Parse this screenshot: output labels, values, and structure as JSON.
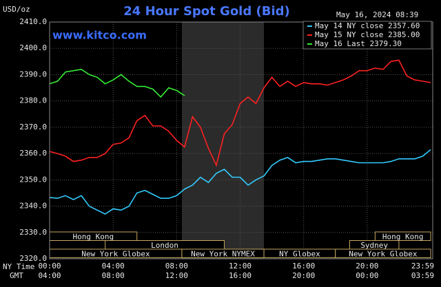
{
  "chart_data": {
    "type": "line",
    "title": "24 Hour Spot Gold (Bid)",
    "unit_label": "USD/oz",
    "timestamp": "May 16, 2024 08:39",
    "watermark": "www.kitco.com",
    "x_row_label": "NY Time",
    "x2_row_label": "GMT",
    "xlim": [
      0,
      24
    ],
    "ylim": [
      2320,
      2410
    ],
    "grid": true,
    "legend": "top-right",
    "yticks": [
      {
        "value": 2320,
        "label": "2320.0"
      },
      {
        "value": 2330,
        "label": "2330.0"
      },
      {
        "value": 2340,
        "label": "2340.0"
      },
      {
        "value": 2350,
        "label": "2350.0"
      },
      {
        "value": 2360,
        "label": "2360.0"
      },
      {
        "value": 2370,
        "label": "2370.0"
      },
      {
        "value": 2380,
        "label": "2380.0"
      },
      {
        "value": 2390,
        "label": "2390.0"
      },
      {
        "value": 2400,
        "label": "2400.0"
      },
      {
        "value": 2410,
        "label": "2410.0"
      }
    ],
    "xticks": [
      {
        "value": 0,
        "label": "00:00"
      },
      {
        "value": 4,
        "label": "04:00"
      },
      {
        "value": 8,
        "label": "08:00"
      },
      {
        "value": 12,
        "label": "12:00"
      },
      {
        "value": 16,
        "label": "16:00"
      },
      {
        "value": 20,
        "label": "20:00"
      },
      {
        "value": 23.98,
        "label": "23:59"
      }
    ],
    "x2ticks": [
      {
        "value": 0,
        "label": "04:00"
      },
      {
        "value": 4,
        "label": "08:00"
      },
      {
        "value": 8,
        "label": "12:00"
      },
      {
        "value": 12,
        "label": "16:00"
      },
      {
        "value": 16,
        "label": "20:00"
      },
      {
        "value": 20,
        "label": "00:00"
      },
      {
        "value": 23.98,
        "label": "03:59"
      }
    ],
    "shade": {
      "start": 8.33,
      "end": 13.5,
      "color": "#2b2b2b"
    },
    "sessions": [
      {
        "label": "Hong Kong",
        "start": 0,
        "end": 5.5,
        "row": 0
      },
      {
        "label": "Hong Kong",
        "start": 20.5,
        "end": 24,
        "row": 0
      },
      {
        "label": "London",
        "start": 3.5,
        "end": 11,
        "row": 1
      },
      {
        "label": "Sydney",
        "start": 18.9,
        "end": 22,
        "row": 1
      },
      {
        "label": "New York Globex",
        "start": 0,
        "end": 8.33,
        "row": 2
      },
      {
        "label": "New York NYMEX",
        "start": 8.33,
        "end": 13.5,
        "row": 2
      },
      {
        "label": "NY Globex",
        "start": 13.5,
        "end": 18,
        "row": 2
      },
      {
        "label": "New York Globex",
        "start": 18,
        "end": 24,
        "row": 2
      }
    ],
    "x": [
      0,
      0.5,
      1,
      1.5,
      2,
      2.5,
      3,
      3.5,
      4,
      4.5,
      5,
      5.5,
      6,
      6.5,
      7,
      7.5,
      8,
      8.5,
      9,
      9.5,
      10,
      10.5,
      11,
      11.5,
      12,
      12.5,
      13,
      13.5,
      14,
      14.5,
      15,
      15.5,
      16,
      16.5,
      17,
      17.5,
      18,
      18.5,
      19,
      19.5,
      20,
      20.5,
      21,
      21.5,
      22,
      22.5,
      23,
      23.5,
      24
    ],
    "series": [
      {
        "name": "May 14 NY close 2357.60",
        "color": "#33ccff",
        "values": [
          2343.3,
          2343,
          2344,
          2342.5,
          2344,
          2340,
          2338.5,
          2337,
          2339,
          2338.5,
          2340,
          2345,
          2346,
          2344.5,
          2343,
          2343,
          2344,
          2346.5,
          2348,
          2351,
          2349,
          2352.5,
          2354,
          2351,
          2351,
          2348,
          2350,
          2351.5,
          2355.5,
          2357.5,
          2358.5,
          2356.5,
          2357,
          2357,
          2357.5,
          2358,
          2358,
          2357.5,
          2357,
          2356.5,
          2356.5,
          2356.5,
          2356.5,
          2357,
          2358,
          2358,
          2358,
          2359,
          2361.5
        ]
      },
      {
        "name": "May 15 NY close 2385.00",
        "color": "#ff2020",
        "values": [
          2360.8,
          2360,
          2359,
          2357,
          2357.5,
          2358.5,
          2358.5,
          2360,
          2363.5,
          2364,
          2366,
          2372.5,
          2374.5,
          2370.5,
          2370.5,
          2368.5,
          2365,
          2362.5,
          2374,
          2370,
          2362,
          2355.5,
          2367.5,
          2371,
          2379,
          2381.5,
          2379,
          2385,
          2389,
          2385.5,
          2387.5,
          2385.5,
          2387,
          2386.5,
          2386.5,
          2386,
          2387,
          2388,
          2389.5,
          2391.5,
          2391.5,
          2392.5,
          2392,
          2395,
          2395.5,
          2389.5,
          2388,
          2387.5,
          2387
        ]
      },
      {
        "name": "May 16 Last 2379.30",
        "color": "#33ee33",
        "values": [
          2386.5,
          2387.5,
          2391,
          2391.5,
          2392,
          2390,
          2389,
          2386.5,
          2388,
          2390,
          2387.5,
          2385.5,
          2385.5,
          2384.5,
          2381.5,
          2385,
          2384,
          2382,
          null,
          null,
          null,
          null,
          null,
          null,
          null,
          null,
          null,
          null,
          null,
          null,
          null,
          null,
          null,
          null,
          null,
          null,
          null,
          null,
          null,
          null,
          null,
          null,
          null,
          null,
          null,
          null,
          null,
          null,
          null
        ]
      }
    ]
  }
}
